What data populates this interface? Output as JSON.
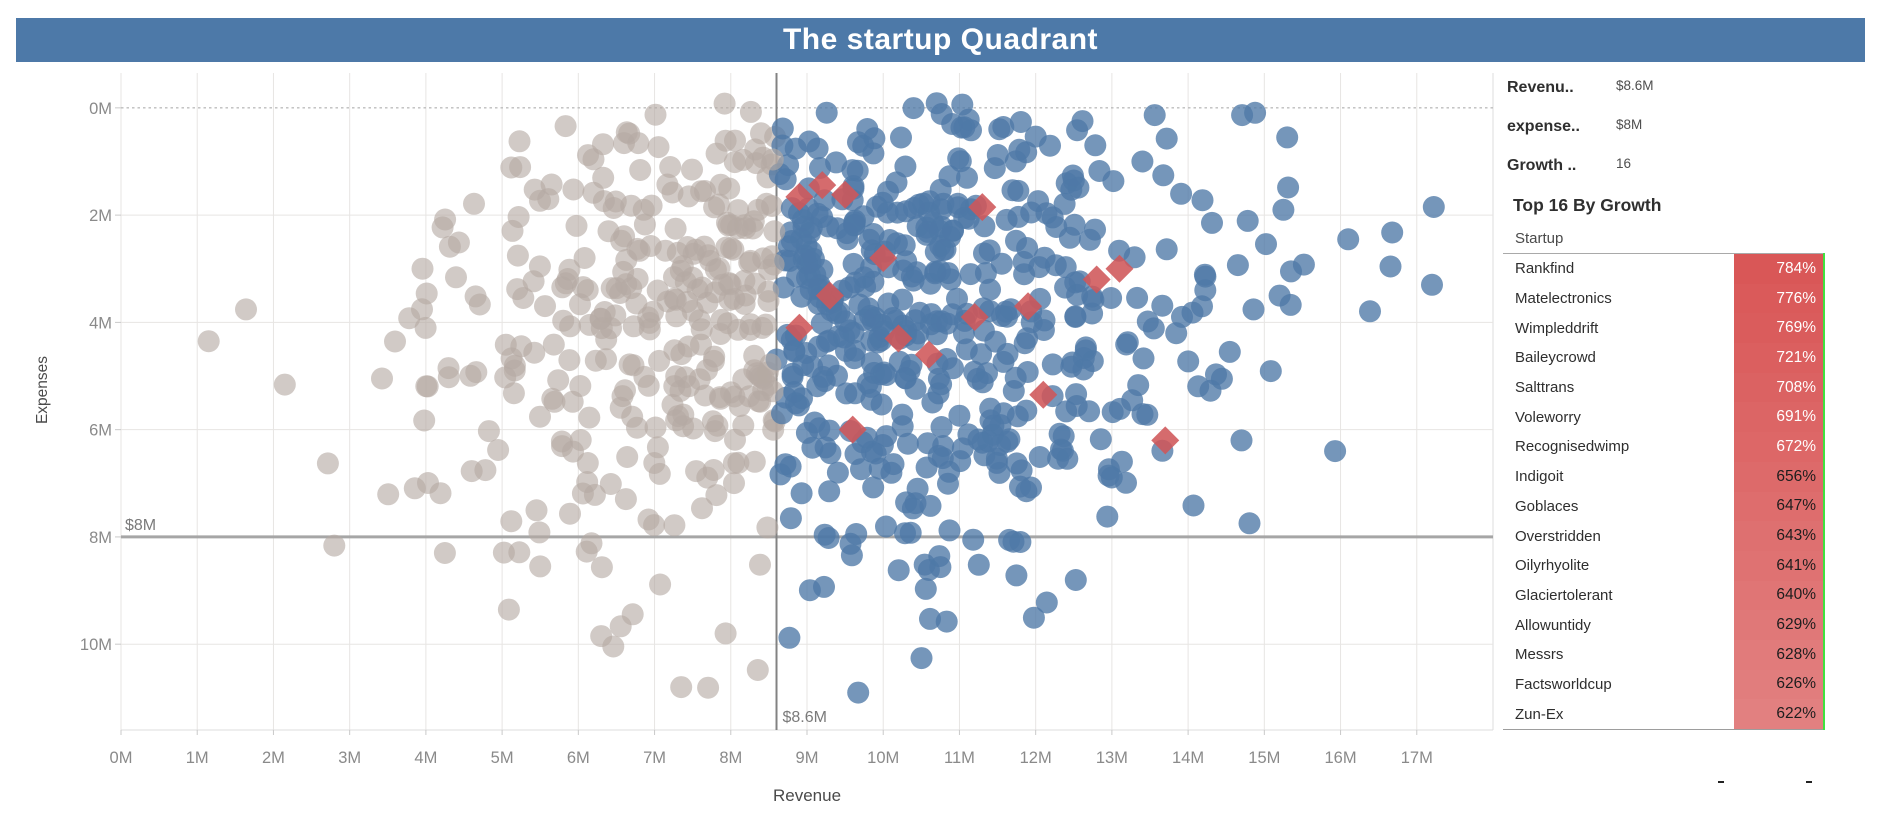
{
  "title": "The startup Quadrant",
  "parameters": [
    {
      "label": "Revenu..",
      "value": "$8.6M"
    },
    {
      "label": "expense..",
      "value": "$8M"
    },
    {
      "label": "Growth ..",
      "value": "16"
    }
  ],
  "leaderboard": {
    "heading": "Top 16 By Growth",
    "column_header": "Startup",
    "white_text_rows": 7,
    "rows": [
      {
        "name": "Rankfind",
        "growth": "784%"
      },
      {
        "name": "Matelectronics",
        "growth": "776%"
      },
      {
        "name": "Wimpleddrift",
        "growth": "769%"
      },
      {
        "name": "Baileycrowd",
        "growth": "721%"
      },
      {
        "name": "Salttrans",
        "growth": "708%"
      },
      {
        "name": "Voleworry",
        "growth": "691%"
      },
      {
        "name": "Recognisedwimp",
        "growth": "672%"
      },
      {
        "name": "Indigoit",
        "growth": "656%"
      },
      {
        "name": "Goblaces",
        "growth": "647%"
      },
      {
        "name": "Overstridden",
        "growth": "643%"
      },
      {
        "name": "Oilyrhyolite",
        "growth": "641%"
      },
      {
        "name": "Glaciertolerant",
        "growth": "640%"
      },
      {
        "name": "Allowuntidy",
        "growth": "629%"
      },
      {
        "name": "Messrs",
        "growth": "628%"
      },
      {
        "name": "Factsworldcup",
        "growth": "626%"
      },
      {
        "name": "Zun-Ex",
        "growth": "622%"
      }
    ]
  },
  "chart_data": {
    "type": "scatter",
    "title": "The startup Quadrant",
    "xlabel": "Revenue",
    "ylabel": "Expenses",
    "x_unit": "M USD",
    "y_unit": "M USD",
    "xlim": [
      0,
      18
    ],
    "ylim": [
      -0.65,
      11.6
    ],
    "y_axis_inverted": true,
    "x_ticks": [
      "0M",
      "1M",
      "2M",
      "3M",
      "4M",
      "5M",
      "6M",
      "7M",
      "8M",
      "9M",
      "10M",
      "11M",
      "12M",
      "13M",
      "14M",
      "15M",
      "16M",
      "17M"
    ],
    "x_tick_values": [
      0,
      1,
      2,
      3,
      4,
      5,
      6,
      7,
      8,
      9,
      10,
      11,
      12,
      13,
      14,
      15,
      16,
      17
    ],
    "y_ticks": [
      "0M",
      "2M",
      "4M",
      "6M",
      "8M",
      "10M"
    ],
    "y_tick_values": [
      0,
      2,
      4,
      6,
      8,
      10
    ],
    "grid": "on",
    "reference_lines": {
      "revenue_threshold": {
        "axis": "x",
        "value": 8.6,
        "label": "$8.6M"
      },
      "expense_threshold": {
        "axis": "y",
        "value": 8.0,
        "label": "$8M"
      },
      "zero_expenses": {
        "axis": "y",
        "value": 0.0,
        "style": "dotted"
      }
    },
    "series": [
      {
        "name": "below-revenue-threshold",
        "marker": "circle",
        "color": "#b5aaa3",
        "opacity": 0.62
      },
      {
        "name": "above-revenue-threshold",
        "marker": "circle",
        "color": "#4e79a7",
        "opacity": 0.78
      },
      {
        "name": "top-16-by-growth",
        "marker": "diamond",
        "color": "#cf5659",
        "opacity": 0.88,
        "points": [
          [
            8.9,
            1.66
          ],
          [
            9.2,
            1.44
          ],
          [
            9.5,
            1.62
          ],
          [
            11.3,
            1.85
          ],
          [
            12.8,
            3.2
          ],
          [
            13.1,
            3.0
          ],
          [
            11.9,
            3.7
          ],
          [
            8.9,
            4.1
          ],
          [
            10.2,
            4.3
          ],
          [
            12.1,
            5.35
          ],
          [
            9.6,
            6.0
          ],
          [
            13.7,
            6.2
          ],
          [
            9.3,
            3.5
          ],
          [
            10.0,
            2.8
          ],
          [
            10.6,
            4.6
          ],
          [
            11.2,
            3.9
          ]
        ]
      }
    ],
    "scatter_generator": {
      "seed": 7,
      "count": 840,
      "x_mean": 9.35,
      "x_sd": 2.55,
      "x_clip": [
        1.1,
        17.4
      ],
      "y_mean": 3.95,
      "y_sd": 2.3,
      "y_clip": [
        -0.1,
        11.2
      ],
      "color_split_at_x": 8.6
    },
    "extra_points": {
      "above": [
        [
          15.3,
          0.55
        ],
        [
          16.1,
          2.45
        ],
        [
          17.2,
          3.3
        ],
        [
          15.25,
          1.9
        ],
        [
          15.2,
          3.5
        ],
        [
          14.7,
          6.2
        ],
        [
          15.35,
          3.05
        ]
      ],
      "below": [
        [
          7.35,
          10.8
        ],
        [
          6.3,
          9.85
        ],
        [
          5.5,
          8.55
        ],
        [
          1.15,
          4.35
        ],
        [
          4.25,
          8.3
        ]
      ]
    }
  },
  "colors": {
    "header_bg": "#4d79a8",
    "header_text": "#ffffff",
    "dot_gray": "#b5aaa3",
    "dot_blue": "#4e79a7",
    "diamond_red": "#cf5659",
    "growth_bar_top": "#d95757",
    "growth_bar_bottom": "#e28080",
    "selection_green": "#3fe23f",
    "gridline": "#e7e5e3",
    "axis_text": "#8a8a8a",
    "ref_line_gray": "#a6a6a6",
    "ref_line_dark": "#828282"
  }
}
